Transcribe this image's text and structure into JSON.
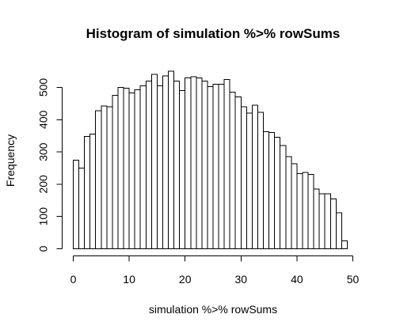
{
  "chart_data": {
    "type": "bar",
    "title": "Histogram of simulation %>% rowSums",
    "xlabel": "simulation %>% rowSums",
    "ylabel": "Frequency",
    "xlim": [
      0,
      50
    ],
    "ylim": [
      0,
      550
    ],
    "bin_width": 1,
    "bins_start": 0,
    "x_ticks": [
      0,
      10,
      20,
      30,
      40,
      50
    ],
    "y_ticks": [
      0,
      100,
      200,
      300,
      400,
      500
    ],
    "values": [
      275,
      250,
      348,
      355,
      428,
      443,
      440,
      475,
      500,
      497,
      483,
      493,
      505,
      520,
      540,
      505,
      535,
      550,
      520,
      490,
      530,
      533,
      530,
      520,
      503,
      510,
      510,
      525,
      485,
      470,
      440,
      420,
      445,
      423,
      363,
      360,
      345,
      320,
      285,
      263,
      233,
      237,
      230,
      185,
      170,
      170,
      155,
      112,
      25
    ],
    "grid": false,
    "colors": {
      "bar_fill": "#ffffff",
      "bar_stroke": "#000000"
    }
  }
}
